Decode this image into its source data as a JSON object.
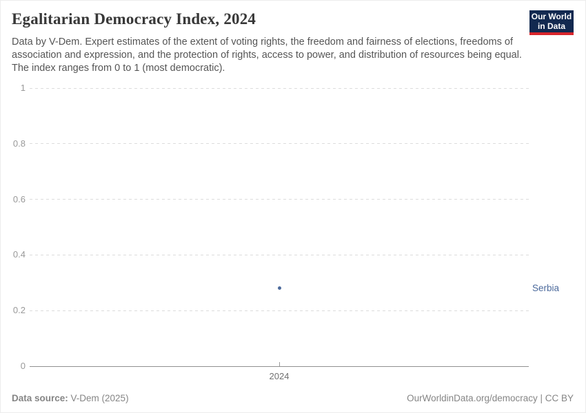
{
  "header": {
    "title": "Egalitarian Democracy Index, 2024",
    "subtitle": "Data by V-Dem. Expert estimates of the extent of voting rights, the freedom and fairness of elections, freedoms of association and expression, and the protection of rights, access to power, and distribution of resources being equal. The index ranges from 0 to 1 (most democratic).",
    "logo": {
      "line1": "Our World",
      "line2": "in Data",
      "bg_color": "#122950",
      "accent_color": "#d8262c"
    }
  },
  "chart_data": {
    "type": "scatter",
    "title": "Egalitarian Democracy Index, 2024",
    "x": [
      2024
    ],
    "xticks": [
      "2024"
    ],
    "yticks": [
      0,
      0.2,
      0.4,
      0.6,
      0.8,
      1
    ],
    "ylim": [
      0,
      1
    ],
    "grid": "horizontal-dashed",
    "legend_position": "right-of-point",
    "series": [
      {
        "name": "Serbia",
        "values": [
          0.28
        ],
        "color": "#4c6a9c"
      }
    ]
  },
  "footer": {
    "source_label": "Data source:",
    "source_value": " V-Dem (2025)",
    "credit": "OurWorldinData.org/democracy | CC BY"
  }
}
